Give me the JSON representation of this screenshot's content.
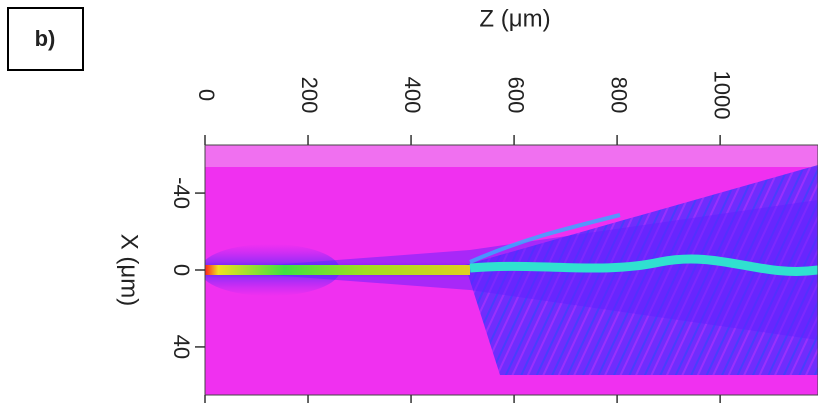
{
  "panel_label": "b)",
  "chart_data": {
    "type": "heatmap",
    "xlabel": "Z (μm)",
    "ylabel": "X (μm)",
    "xlim": [
      0,
      1190
    ],
    "xticks": [
      0,
      200,
      400,
      600,
      800,
      1000
    ],
    "ylim": [
      -65,
      65
    ],
    "yticks": [
      -40,
      0,
      40
    ]
  }
}
